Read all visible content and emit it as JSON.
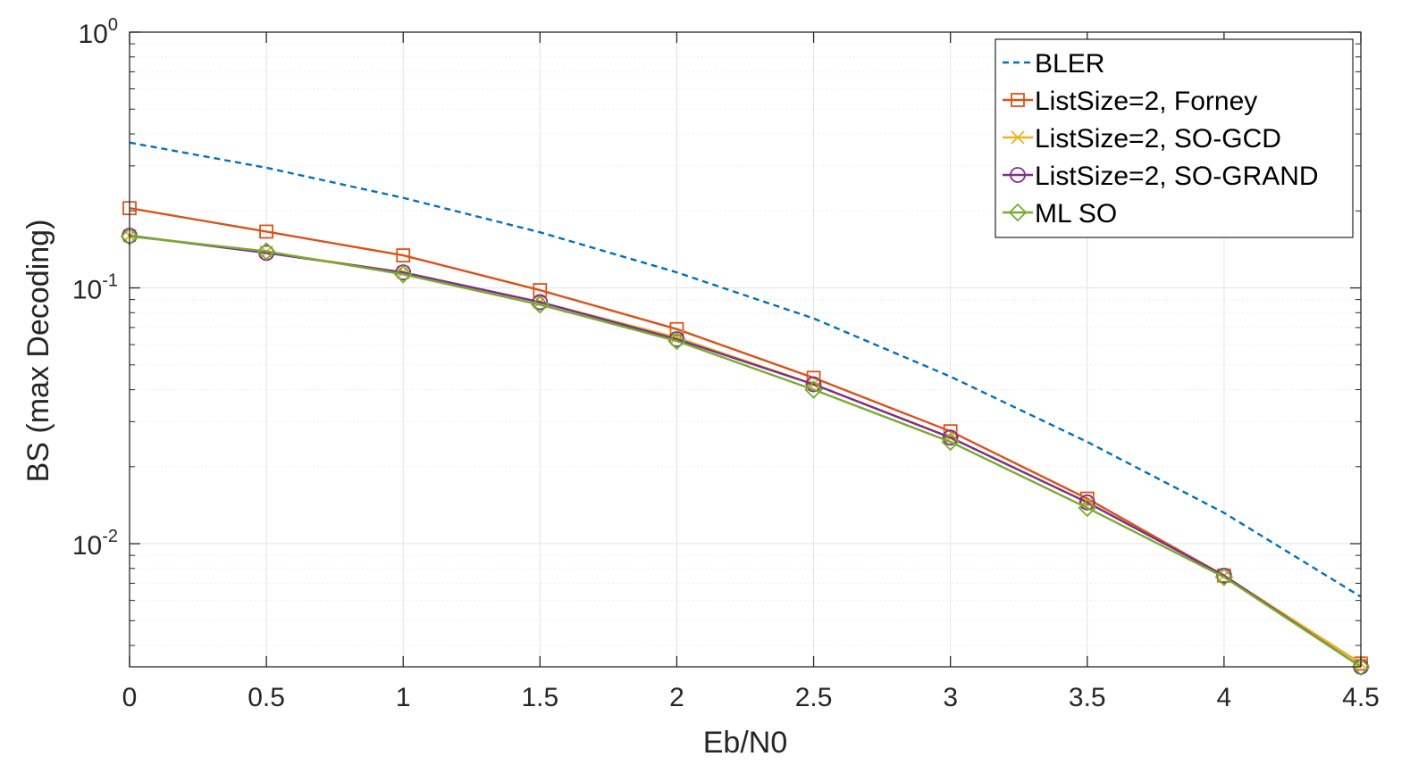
{
  "chart_data": {
    "type": "line",
    "xlabel": "Eb/N0",
    "ylabel": "BS (max Decoding)",
    "xlim": [
      0,
      4.5
    ],
    "ylim": [
      0.0033,
      1
    ],
    "yscale": "log",
    "grid": true,
    "legend_position": "top-right",
    "x_ticks": [
      "0",
      "0.5",
      "1",
      "1.5",
      "2",
      "2.5",
      "3",
      "3.5",
      "4",
      "4.5"
    ],
    "y_ticks": [
      {
        "value": 1,
        "base": "10",
        "exp": "0"
      },
      {
        "value": 0.1,
        "base": "10",
        "exp": "-1"
      },
      {
        "value": 0.01,
        "base": "10",
        "exp": "-2"
      }
    ],
    "x": [
      0,
      0.5,
      1,
      1.5,
      2,
      2.5,
      3,
      3.5,
      4,
      4.5
    ],
    "series": [
      {
        "name": "BLER",
        "color": "#0072BD",
        "dash": "dashed",
        "marker": "none",
        "values": [
          0.37,
          0.295,
          0.225,
          0.165,
          0.115,
          0.076,
          0.045,
          0.025,
          0.0132,
          0.0062
        ]
      },
      {
        "name": "ListSize=2, Forney",
        "color": "#D95319",
        "dash": "solid",
        "marker": "square",
        "values": [
          0.205,
          0.166,
          0.134,
          0.098,
          0.069,
          0.0445,
          0.0275,
          0.015,
          0.0075,
          0.0034
        ]
      },
      {
        "name": "ListSize=2, SO-GCD",
        "color": "#EDB120",
        "dash": "solid",
        "marker": "x",
        "values": [
          0.16,
          0.138,
          0.115,
          0.088,
          0.064,
          0.042,
          0.026,
          0.0145,
          0.0075,
          0.0034
        ]
      },
      {
        "name": "ListSize=2, SO-GRAND",
        "color": "#7E2F8E",
        "dash": "solid",
        "marker": "circle",
        "values": [
          0.16,
          0.137,
          0.115,
          0.088,
          0.063,
          0.042,
          0.026,
          0.0145,
          0.0075,
          0.0033
        ]
      },
      {
        "name": "ML SO",
        "color": "#77AC30",
        "dash": "solid",
        "marker": "diamond",
        "values": [
          0.159,
          0.139,
          0.113,
          0.086,
          0.062,
          0.04,
          0.025,
          0.0138,
          0.0074,
          0.0033
        ]
      }
    ]
  }
}
